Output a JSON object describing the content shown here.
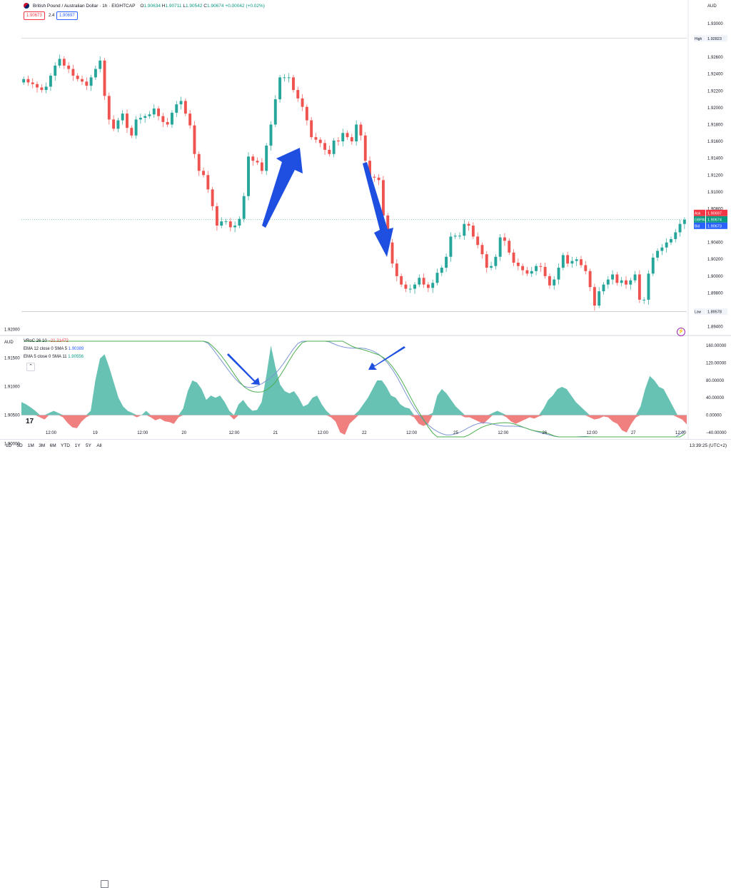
{
  "symbol": {
    "name": "British Pound / Australian Dollar · 1h · EIGHTCAP",
    "ohlc": {
      "o": "1.90634",
      "h": "1.90711",
      "l": "1.90542",
      "c": "1.90674",
      "chg": "+0.00042 (+0.02%)"
    },
    "sell": "1.90673",
    "spread": "2.4",
    "buy": "1.90697"
  },
  "axis": {
    "currency": "AUD",
    "ticks": [
      {
        "label": "1.93000",
        "v": 1.93
      },
      {
        "label": "1.92600",
        "v": 1.926
      },
      {
        "label": "1.92400",
        "v": 1.924
      },
      {
        "label": "1.92200",
        "v": 1.922
      },
      {
        "label": "1.92000",
        "v": 1.92
      },
      {
        "label": "1.91800",
        "v": 1.918
      },
      {
        "label": "1.91600",
        "v": 1.916
      },
      {
        "label": "1.91400",
        "v": 1.914
      },
      {
        "label": "1.91200",
        "v": 1.912
      },
      {
        "label": "1.91000",
        "v": 1.91
      },
      {
        "label": "1.90800",
        "v": 1.908
      },
      {
        "label": "1.90400",
        "v": 1.904
      },
      {
        "label": "1.90200",
        "v": 1.902
      },
      {
        "label": "1.90000",
        "v": 1.9
      },
      {
        "label": "1.89800",
        "v": 1.898
      },
      {
        "label": "1.89400",
        "v": 1.894
      }
    ],
    "high": {
      "tag": "High",
      "value": "1.92823",
      "v": 1.92823
    },
    "low": {
      "tag": "Low",
      "value": "1.89578",
      "v": 1.89578
    },
    "ask": {
      "tag": "Ask",
      "value": "1.90697",
      "v": 1.90697
    },
    "last": {
      "tag": "GBPAUD",
      "value": "1.90674",
      "v": 1.90674
    },
    "bid": {
      "tag": "Bid",
      "value": "1.90673",
      "v": 1.90673
    },
    "x_labels": [
      {
        "label": "12:00",
        "b": 10
      },
      {
        "label": "19",
        "b": 27
      },
      {
        "label": "12:00",
        "b": 43
      },
      {
        "label": "20",
        "b": 59
      },
      {
        "label": "12:00",
        "b": 76
      },
      {
        "label": "21",
        "b": 92
      },
      {
        "label": "12:00",
        "b": 108
      },
      {
        "label": "22",
        "b": 124
      },
      {
        "label": "12:00",
        "b": 140
      },
      {
        "label": "25",
        "b": 157
      },
      {
        "label": "12:00",
        "b": 173
      },
      {
        "label": "26",
        "b": 189
      },
      {
        "label": "12:00",
        "b": 205
      },
      {
        "label": "27",
        "b": 221
      },
      {
        "label": "12:00",
        "b": 237
      }
    ]
  },
  "indicators": {
    "vroc": {
      "name": "VRoC 26 10",
      "value": "−21.21472"
    },
    "ema12": {
      "name": "EMA 12 close 0 SMA 5",
      "value": "1.90389"
    },
    "ema5": {
      "name": "EMA 5 close 0 SMA 11",
      "value": "1.90556"
    },
    "axis_currency": "AUD",
    "left_ticks": [
      {
        "label": "1.92000",
        "v": 1.92
      },
      {
        "label": "1.91500",
        "v": 1.915
      },
      {
        "label": "1.91000",
        "v": 1.91
      },
      {
        "label": "1.90500",
        "v": 1.905
      },
      {
        "label": "1.90000",
        "v": 1.9
      }
    ],
    "right_ticks": [
      {
        "label": "160.00000",
        "v": 160
      },
      {
        "label": "120.00000",
        "v": 120
      },
      {
        "label": "80.00000",
        "v": 80
      },
      {
        "label": "40.00000",
        "v": 40
      },
      {
        "label": "0.00000",
        "v": 0
      },
      {
        "label": "−40.00000",
        "v": -40
      }
    ]
  },
  "timeframes": [
    "1D",
    "5D",
    "1M",
    "3M",
    "6M",
    "YTD",
    "1Y",
    "5Y",
    "All"
  ],
  "timezone": "13:39:25 (UTC+2)",
  "colors": {
    "up": "#26a69a",
    "down": "#ef5350",
    "arrow": "#1f4fe0",
    "vroc_pos": "#67c2b3",
    "vroc_neg": "#f07f7f",
    "ema12": "#7b95d4",
    "ema5": "#4caf50",
    "grid": "#d1d4dc"
  },
  "chart_data": [
    {
      "type": "line",
      "title": "British Pound / Australian Dollar · 1h · EIGHTCAP",
      "series": [
        {
          "name": "GBPAUD",
          "values": [
            1.9234,
            1.923,
            1.9228,
            1.9224,
            1.9221,
            1.9225,
            1.9238,
            1.925,
            1.9258,
            1.925,
            1.9246,
            1.9238,
            1.9234,
            1.9231,
            1.9226,
            1.9236,
            1.9246,
            1.9256,
            1.9214,
            1.9186,
            1.9175,
            1.9185,
            1.9193,
            1.9176,
            1.9167,
            1.9186,
            1.9188,
            1.919,
            1.9192,
            1.9199,
            1.919,
            1.9183,
            1.918,
            1.9194,
            1.9204,
            1.9208,
            1.9193,
            1.9179,
            1.9145,
            1.9125,
            1.912,
            1.9103,
            1.9083,
            1.906,
            1.9065,
            1.9065,
            1.9058,
            1.906,
            1.9068,
            1.9095,
            1.9142,
            1.9137,
            1.9135,
            1.9125,
            1.9155,
            1.918,
            1.921,
            1.9236,
            1.9236,
            1.9236,
            1.9221,
            1.9211,
            1.9201,
            1.9185,
            1.9165,
            1.9162,
            1.9158,
            1.915,
            1.9145,
            1.9161,
            1.916,
            1.917,
            1.9165,
            1.916,
            1.918,
            1.9167,
            1.9137,
            1.9118,
            1.9117,
            1.9114,
            1.9072,
            1.904,
            1.9015,
            1.9,
            1.899,
            1.8985,
            1.8985,
            1.899,
            1.8998,
            1.899,
            1.8986,
            1.8992,
            1.9004,
            1.901,
            1.9023,
            1.9047,
            1.9048,
            1.9048,
            1.9062,
            1.906,
            1.9047,
            1.9037,
            1.9026,
            1.901,
            1.9012,
            1.9023,
            1.9046,
            1.9042,
            1.9028,
            1.9016,
            1.9012,
            1.9007,
            1.9003,
            1.9006,
            1.9012,
            1.9011,
            1.9,
            1.8989,
            1.8996,
            1.901,
            1.9025,
            1.9015,
            1.9018,
            1.902,
            1.9013,
            1.9006,
            1.8987,
            1.8965,
            1.8982,
            1.899,
            1.8996,
            1.9002,
            1.8992,
            1.8995,
            1.899,
            1.8995,
            1.9002,
            1.8972,
            1.8972,
            1.9003,
            1.9022,
            1.903,
            1.9034,
            1.904,
            1.9044,
            1.9052,
            1.9062,
            1.9067
          ]
        }
      ],
      "x_axis": {
        "type": "time",
        "labels": [
          "12:00",
          "19",
          "12:00",
          "20",
          "12:00",
          "21",
          "12:00",
          "22",
          "12:00",
          "25",
          "12:00",
          "26",
          "12:00",
          "27",
          "12:00"
        ]
      },
      "ylim": [
        1.8938,
        1.9316
      ]
    },
    {
      "type": "area",
      "title": "",
      "series": [
        {
          "name": "VRoC 26 10",
          "values": [
            30,
            25,
            18,
            10,
            -5,
            -10,
            5,
            10,
            5,
            -5,
            -18,
            -28,
            -30,
            -15,
            -5,
            10,
            80,
            130,
            140,
            110,
            75,
            40,
            20,
            10,
            5,
            -5,
            0,
            10,
            -5,
            -12,
            -8,
            -14,
            -16,
            -20,
            -5,
            15,
            55,
            80,
            75,
            60,
            35,
            45,
            40,
            45,
            30,
            10,
            -10,
            25,
            35,
            20,
            10,
            12,
            30,
            90,
            160,
            110,
            70,
            55,
            50,
            55,
            40,
            20,
            25,
            40,
            45,
            25,
            10,
            -5,
            -15,
            -40,
            -45,
            -20,
            -10,
            10,
            25,
            40,
            60,
            80,
            80,
            65,
            45,
            40,
            25,
            18,
            15,
            -5,
            -20,
            -25,
            -20,
            5,
            45,
            60,
            50,
            35,
            20,
            10,
            -5,
            -5,
            -10,
            -15,
            -20,
            -10,
            5,
            10,
            5,
            -5,
            -15,
            -20,
            -15,
            -10,
            -5,
            -8,
            -3,
            15,
            35,
            45,
            60,
            65,
            60,
            45,
            30,
            20,
            10,
            -5,
            -10,
            -8,
            -3,
            -5,
            -15,
            -20,
            -35,
            -40,
            -20,
            -5,
            20,
            60,
            90,
            80,
            65,
            60,
            40,
            20,
            -5,
            -10,
            -21
          ]
        }
      ],
      "ylim": [
        -50,
        170
      ]
    }
  ]
}
